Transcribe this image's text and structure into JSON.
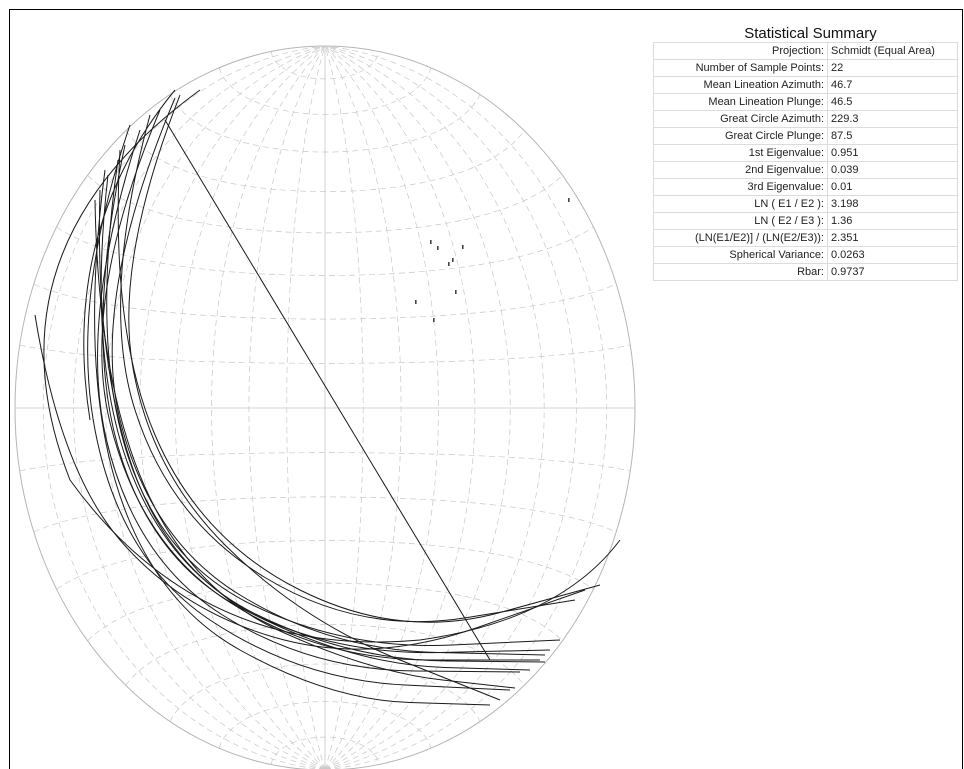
{
  "summary": {
    "title": "Statistical Summary",
    "rows": [
      {
        "label": "Projection:",
        "value": "Schmidt (Equal Area)"
      },
      {
        "label": "Number of Sample Points:",
        "value": "22"
      },
      {
        "label": "Mean Lineation Azimuth:",
        "value": "46.7"
      },
      {
        "label": "Mean Lineation Plunge:",
        "value": "46.5"
      },
      {
        "label": "Great Circle Azimuth:",
        "value": "229.3"
      },
      {
        "label": "Great Circle Plunge:",
        "value": "87.5"
      },
      {
        "label": "1st Eigenvalue:",
        "value": "0.951"
      },
      {
        "label": "2nd Eigenvalue:",
        "value": "0.039"
      },
      {
        "label": "3rd Eigenvalue:",
        "value": "0.01"
      },
      {
        "label": "LN ( E1 / E2 ):",
        "value": "3.198"
      },
      {
        "label": "LN ( E2 / E3 ):",
        "value": "1.36"
      },
      {
        "label": "(LN(E1/E2)] / (LN(E2/E3)):",
        "value": "2.351"
      },
      {
        "label": "Spherical Variance:",
        "value": "0.0263"
      },
      {
        "label": "Rbar:",
        "value": "0.9737"
      }
    ]
  },
  "stereonet": {
    "projection": "Schmidt (Equal Area)",
    "grid_color": "#c8c8c8",
    "trace_color": "#1a1a1a"
  }
}
